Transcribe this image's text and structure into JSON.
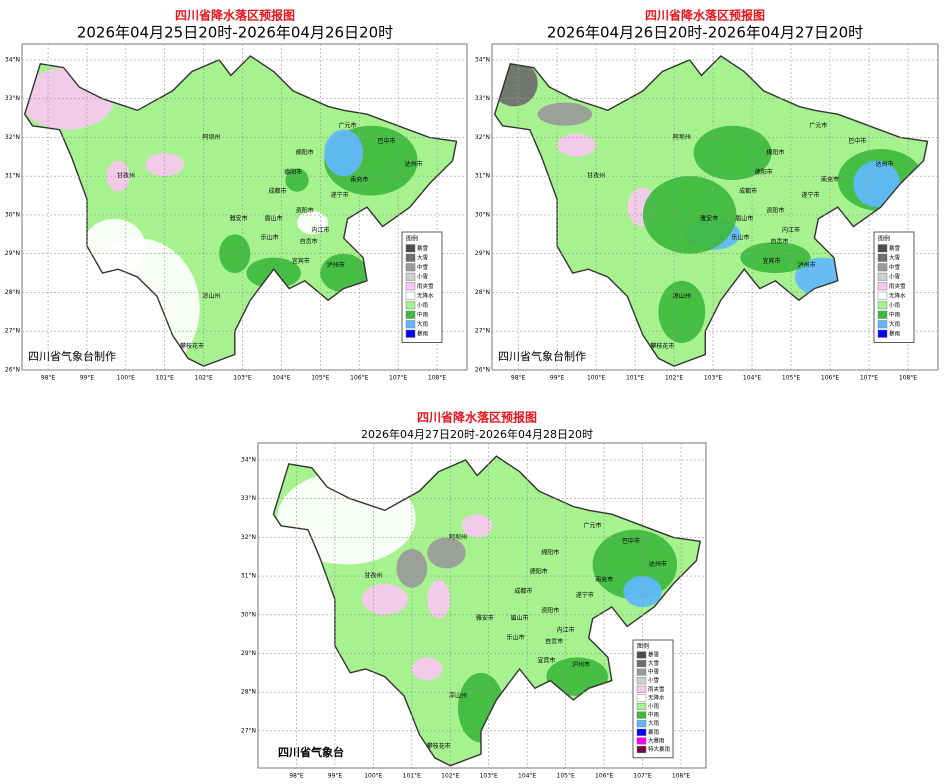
{
  "panels": [
    {
      "title": "四川省降水落区预报图",
      "subtitle": "2026年04月25日20时-2026年04月26日20时",
      "credit": "四川省气象台制作",
      "lat_ticks": [
        {
          "value": 34,
          "label": "34°N"
        },
        {
          "value": 33,
          "label": "33°N"
        },
        {
          "value": 32,
          "label": "32°N"
        },
        {
          "value": 31,
          "label": "31°N"
        },
        {
          "value": 30,
          "label": "30°N"
        },
        {
          "value": 29,
          "label": "29°N"
        },
        {
          "value": 28,
          "label": "28°N"
        },
        {
          "value": 27,
          "label": "27°N"
        },
        {
          "value": 26,
          "label": "26°N"
        }
      ],
      "lon_ticks": [
        {
          "value": 98,
          "label": "98°E"
        },
        {
          "value": 99,
          "label": "99°E"
        },
        {
          "value": 100,
          "label": "100°E"
        },
        {
          "value": 101,
          "label": "101°E"
        },
        {
          "value": 102,
          "label": "102°E"
        },
        {
          "value": 103,
          "label": "103°E"
        },
        {
          "value": 104,
          "label": "104°E"
        },
        {
          "value": 105,
          "label": "105°E"
        },
        {
          "value": 106,
          "label": "106°E"
        },
        {
          "value": 107,
          "label": "107°E"
        },
        {
          "value": 108,
          "label": "108°E"
        }
      ],
      "cities": [
        "阿坝州",
        "绵阳市",
        "广元市",
        "巴中市",
        "达州市",
        "南充市",
        "德阳市",
        "成都市",
        "遂宁市",
        "甘孜州",
        "雅安市",
        "眉山市",
        "资阳市",
        "乐山市",
        "内江市",
        "自贡市",
        "宜宾市",
        "泸州市",
        "凉山州",
        "攀枝花市"
      ],
      "legend": {
        "title": "图例",
        "items": [
          {
            "label": "暴雪",
            "color": "#4d4d4d"
          },
          {
            "label": "大雪",
            "color": "#6e6e6e"
          },
          {
            "label": "中雪",
            "color": "#9a9a9a"
          },
          {
            "label": "小雪",
            "color": "#cfcfcf"
          },
          {
            "label": "雨夹雪",
            "color": "#f9c8f0"
          },
          {
            "label": "无降水",
            "color": "#ffffff"
          },
          {
            "label": "小雨",
            "color": "#a6f28f"
          },
          {
            "label": "中雨",
            "color": "#3dba3d"
          },
          {
            "label": "大雨",
            "color": "#61b8ff"
          },
          {
            "label": "暴雨",
            "color": "#0000fe"
          }
        ]
      }
    },
    {
      "title": "四川省降水落区预报图",
      "subtitle": "2026年04月26日20时-2026年04月27日20时",
      "credit": "四川省气象台制作",
      "lat_ticks": [
        {
          "value": 34,
          "label": "34°N"
        },
        {
          "value": 33,
          "label": "33°N"
        },
        {
          "value": 32,
          "label": "32°N"
        },
        {
          "value": 31,
          "label": "31°N"
        },
        {
          "value": 30,
          "label": "30°N"
        },
        {
          "value": 29,
          "label": "29°N"
        },
        {
          "value": 28,
          "label": "28°N"
        },
        {
          "value": 27,
          "label": "27°N"
        },
        {
          "value": 26,
          "label": "26°N"
        }
      ],
      "lon_ticks": [
        {
          "value": 98,
          "label": "98°E"
        },
        {
          "value": 99,
          "label": "99°E"
        },
        {
          "value": 100,
          "label": "100°E"
        },
        {
          "value": 101,
          "label": "101°E"
        },
        {
          "value": 102,
          "label": "102°E"
        },
        {
          "value": 103,
          "label": "103°E"
        },
        {
          "value": 104,
          "label": "104°E"
        },
        {
          "value": 105,
          "label": "105°E"
        },
        {
          "value": 106,
          "label": "106°E"
        },
        {
          "value": 107,
          "label": "107°E"
        },
        {
          "value": 108,
          "label": "108°E"
        }
      ],
      "cities": [
        "阿坝州",
        "绵阳市",
        "广元市",
        "巴中市",
        "达州市",
        "南充市",
        "德阳市",
        "成都市",
        "遂宁市",
        "甘孜州",
        "雅安市",
        "眉山市",
        "资阳市",
        "乐山市",
        "内江市",
        "自贡市",
        "宜宾市",
        "泸州市",
        "凉山州",
        "攀枝花市"
      ],
      "legend": {
        "title": "图例",
        "items": [
          {
            "label": "暴雪",
            "color": "#4d4d4d"
          },
          {
            "label": "大雪",
            "color": "#6e6e6e"
          },
          {
            "label": "中雪",
            "color": "#9a9a9a"
          },
          {
            "label": "小雪",
            "color": "#cfcfcf"
          },
          {
            "label": "雨夹雪",
            "color": "#f9c8f0"
          },
          {
            "label": "无降水",
            "color": "#ffffff"
          },
          {
            "label": "小雨",
            "color": "#a6f28f"
          },
          {
            "label": "中雨",
            "color": "#3dba3d"
          },
          {
            "label": "大雨",
            "color": "#61b8ff"
          },
          {
            "label": "暴雨",
            "color": "#0000fe"
          }
        ]
      }
    },
    {
      "title": "四川省降水落区预报图",
      "subtitle": "2026年04月27日20时-2026年04月28日20时",
      "credit": "四川省气象台",
      "lat_ticks": [
        {
          "value": 34,
          "label": "34°N"
        },
        {
          "value": 33,
          "label": "33°N"
        },
        {
          "value": 32,
          "label": "32°N"
        },
        {
          "value": 31,
          "label": "31°N"
        },
        {
          "value": 30,
          "label": "30°N"
        },
        {
          "value": 29,
          "label": "29°N"
        },
        {
          "value": 28,
          "label": "28°N"
        },
        {
          "value": 27,
          "label": "27°N"
        }
      ],
      "lon_ticks": [
        {
          "value": 98,
          "label": "98°E"
        },
        {
          "value": 99,
          "label": "99°E"
        },
        {
          "value": 100,
          "label": "100°E"
        },
        {
          "value": 101,
          "label": "101°E"
        },
        {
          "value": 102,
          "label": "102°E"
        },
        {
          "value": 103,
          "label": "103°E"
        },
        {
          "value": 104,
          "label": "104°E"
        },
        {
          "value": 105,
          "label": "105°E"
        },
        {
          "value": 106,
          "label": "106°E"
        },
        {
          "value": 107,
          "label": "107°E"
        },
        {
          "value": 108,
          "label": "108°E"
        }
      ],
      "cities": [
        "阿坝州",
        "绵阳市",
        "广元市",
        "巴中市",
        "达州市",
        "南充市",
        "德阳市",
        "成都市",
        "遂宁市",
        "甘孜州",
        "雅安市",
        "眉山市",
        "资阳市",
        "乐山市",
        "内江市",
        "自贡市",
        "宜宾市",
        "泸州市",
        "凉山州",
        "攀枝花市"
      ],
      "legend": {
        "title": "图例",
        "items": [
          {
            "label": "暴雪",
            "color": "#4d4d4d"
          },
          {
            "label": "大雪",
            "color": "#6e6e6e"
          },
          {
            "label": "中雪",
            "color": "#9a9a9a"
          },
          {
            "label": "小雪",
            "color": "#cfcfcf"
          },
          {
            "label": "雨夹雪",
            "color": "#f9c8f0"
          },
          {
            "label": "无降水",
            "color": "#ffffff"
          },
          {
            "label": "小雨",
            "color": "#a6f28f"
          },
          {
            "label": "中雨",
            "color": "#3dba3d"
          },
          {
            "label": "大雨",
            "color": "#61b8ff"
          },
          {
            "label": "暴雨",
            "color": "#0000fe"
          },
          {
            "label": "大暴雨",
            "color": "#fa00fa"
          },
          {
            "label": "特大暴雨",
            "color": "#800040"
          }
        ]
      }
    }
  ]
}
